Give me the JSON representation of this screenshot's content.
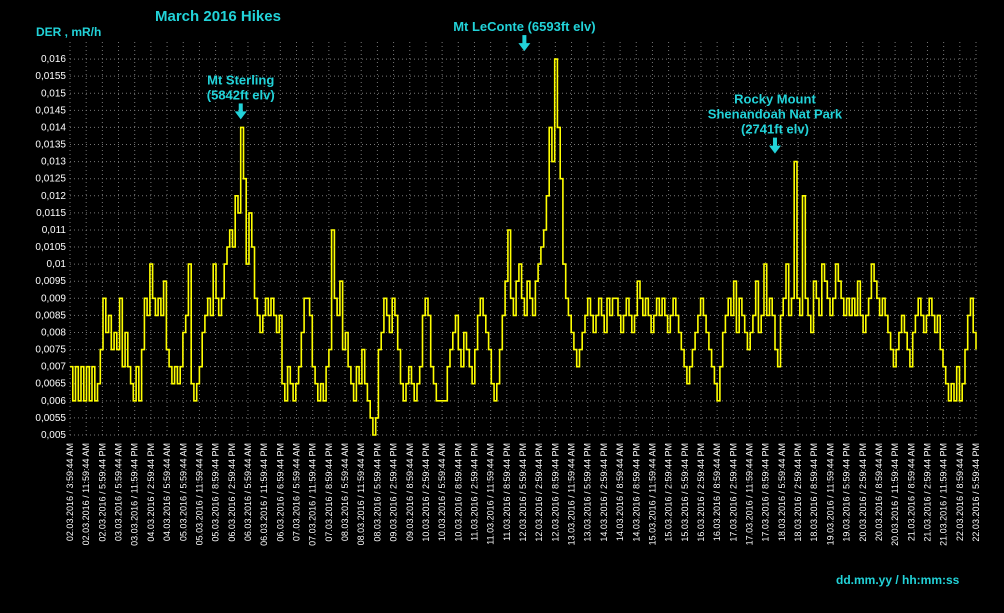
{
  "chart_data": {
    "type": "line",
    "title": "March 2016 Hikes",
    "ylabel": "DER , mR/h",
    "xlabel": "dd.mm.yy / hh:mm:ss",
    "ylim": [
      0.005,
      0.0165
    ],
    "grid": true,
    "y_ticks": [
      "0,005",
      "0,0055",
      "0,006",
      "0,0065",
      "0,007",
      "0,0075",
      "0,008",
      "0,0085",
      "0,009",
      "0,0095",
      "0,01",
      "0,0105",
      "0,011",
      "0,0115",
      "0,012",
      "0,0125",
      "0,013",
      "0,0135",
      "0,014",
      "0,0145",
      "0,015",
      "0,0155",
      "0,016"
    ],
    "x_ticks": [
      "02.03.2016 / 3:59:44 AM",
      "02.03.2016 / 11:59:44 AM",
      "02.03.2016 / 5:59:44 PM",
      "03.03.2016 / 5:59:44 AM",
      "03.03.2016 / 11:59:44 PM",
      "04.03.2016 / 2:59:44 PM",
      "04.03.2016 / 5:59:44 AM",
      "05.03.2016 / 5:59:44 AM",
      "05.03.2016 / 11:59:44 AM",
      "05.03.2016 / 8:59:44 PM",
      "06.03.2016 / 2:59:44 PM",
      "06.03.2016 / 5:59:44 AM",
      "06.03.2016 / 11:59:44 PM",
      "06.03.2016 / 6:59:44 PM",
      "07.03.2016 / 5:59:44 AM",
      "07.03.2016 / 11:59:44 PM",
      "07.03.2016 / 8:59:44 PM",
      "08.03.2016 / 5:59:44 AM",
      "08.03.2016 / 11:59:44 AM",
      "08.03.2016 / 5:59:44 PM",
      "09.03.2016 / 2:59:44 PM",
      "09.03.2016 / 8:59:44 AM",
      "10.03.2016 / 2:59:44 PM",
      "10.03.2016 / 5:59:44 AM",
      "10.03.2016 / 8:59:44 PM",
      "11.03.2016 / 2:59:44 PM",
      "11.03.2016 / 11:59:44 AM",
      "11.03.2016 / 8:59:44 PM",
      "12.03.2016 / 5:59:44 PM",
      "12.03.2016 / 2:59:44 PM",
      "12.03.2016 / 8:59:44 PM",
      "13.03.2016 / 11:59:44 AM",
      "13.03.2016 / 5:59:44 PM",
      "14.03.2016 / 2:59:44 PM",
      "14.03.2016 / 8:59:44 AM",
      "14.03.2016 / 8:59:44 PM",
      "15.03.2016 / 11:59:44 AM",
      "15.03.2016 / 2:59:44 PM",
      "15.03.2016 / 5:59:44 PM",
      "16.03.2016 / 2:59:44 PM",
      "16.03.2016 / 8:59:44 AM",
      "17.03.2016 / 2:59:44 PM",
      "17.03.2016 / 11:59:44 AM",
      "17.03.2016 / 8:59:44 PM",
      "18.03.2016 / 5:59:44 AM",
      "18.03.2016 / 2:59:44 PM",
      "18.03.2016 / 8:59:44 PM",
      "19.03.2016 / 11:59:44 AM",
      "19.03.2016 / 5:59:44 PM",
      "20.03.2016 / 2:59:44 PM",
      "20.03.2016 / 8:59:44 AM",
      "20.03.2016 / 11:59:44 PM",
      "21.03.2016 / 8:59:44 AM",
      "21.03.2016 / 2:59:44 PM",
      "21.03.2016 / 11:59:44 PM",
      "22.03.2016 / 8:59:44 AM",
      "22.03.2016 / 5:59:44 PM"
    ],
    "series": [
      {
        "color": "#ffff00",
        "values": [
          0.007,
          0.006,
          0.007,
          0.006,
          0.007,
          0.006,
          0.007,
          0.006,
          0.007,
          0.006,
          0.0065,
          0.0075,
          0.009,
          0.008,
          0.0085,
          0.0075,
          0.008,
          0.0075,
          0.009,
          0.007,
          0.008,
          0.007,
          0.0065,
          0.006,
          0.007,
          0.006,
          0.0075,
          0.009,
          0.0085,
          0.01,
          0.009,
          0.0085,
          0.009,
          0.0085,
          0.0095,
          0.0075,
          0.007,
          0.0065,
          0.007,
          0.0065,
          0.007,
          0.008,
          0.0085,
          0.01,
          0.0065,
          0.006,
          0.0065,
          0.007,
          0.008,
          0.0085,
          0.009,
          0.0085,
          0.01,
          0.009,
          0.0085,
          0.009,
          0.01,
          0.0105,
          0.011,
          0.0105,
          0.012,
          0.0115,
          0.014,
          0.0125,
          0.01,
          0.0115,
          0.0105,
          0.009,
          0.0085,
          0.008,
          0.0085,
          0.009,
          0.0085,
          0.009,
          0.0085,
          0.008,
          0.0085,
          0.0065,
          0.006,
          0.007,
          0.0065,
          0.006,
          0.0065,
          0.007,
          0.008,
          0.009,
          0.009,
          0.0085,
          0.007,
          0.0065,
          0.006,
          0.0065,
          0.006,
          0.007,
          0.0075,
          0.011,
          0.009,
          0.0085,
          0.0095,
          0.0075,
          0.008,
          0.007,
          0.0065,
          0.006,
          0.007,
          0.0065,
          0.0075,
          0.0065,
          0.006,
          0.0055,
          0.005,
          0.0055,
          0.0075,
          0.008,
          0.009,
          0.0085,
          0.008,
          0.009,
          0.0085,
          0.0075,
          0.0065,
          0.006,
          0.0065,
          0.007,
          0.0065,
          0.006,
          0.0065,
          0.007,
          0.0085,
          0.009,
          0.0085,
          0.007,
          0.0065,
          0.006,
          0.006,
          0.006,
          0.006,
          0.007,
          0.0075,
          0.008,
          0.0085,
          0.0075,
          0.007,
          0.008,
          0.0075,
          0.007,
          0.0065,
          0.0075,
          0.0085,
          0.009,
          0.0085,
          0.008,
          0.0075,
          0.0065,
          0.006,
          0.0065,
          0.0075,
          0.0085,
          0.0095,
          0.011,
          0.009,
          0.0085,
          0.0095,
          0.01,
          0.009,
          0.0085,
          0.0095,
          0.009,
          0.0085,
          0.0095,
          0.01,
          0.0105,
          0.011,
          0.012,
          0.014,
          0.013,
          0.016,
          0.014,
          0.0125,
          0.01,
          0.009,
          0.0085,
          0.008,
          0.0075,
          0.007,
          0.0075,
          0.008,
          0.0085,
          0.009,
          0.0085,
          0.008,
          0.0085,
          0.009,
          0.0085,
          0.008,
          0.009,
          0.0085,
          0.009,
          0.009,
          0.0085,
          0.008,
          0.0085,
          0.009,
          0.0085,
          0.008,
          0.0085,
          0.0095,
          0.009,
          0.0085,
          0.009,
          0.0085,
          0.008,
          0.0085,
          0.009,
          0.0085,
          0.009,
          0.0085,
          0.008,
          0.0085,
          0.009,
          0.0085,
          0.008,
          0.0075,
          0.007,
          0.0065,
          0.007,
          0.0075,
          0.008,
          0.0085,
          0.009,
          0.0085,
          0.008,
          0.0075,
          0.007,
          0.0065,
          0.006,
          0.007,
          0.008,
          0.0085,
          0.009,
          0.0085,
          0.0095,
          0.008,
          0.009,
          0.0085,
          0.008,
          0.0075,
          0.008,
          0.0085,
          0.0095,
          0.008,
          0.0085,
          0.01,
          0.0085,
          0.009,
          0.0085,
          0.0075,
          0.007,
          0.0085,
          0.009,
          0.01,
          0.0085,
          0.009,
          0.013,
          0.009,
          0.0085,
          0.012,
          0.009,
          0.0085,
          0.008,
          0.0095,
          0.009,
          0.0085,
          0.01,
          0.0095,
          0.009,
          0.0085,
          0.009,
          0.01,
          0.0095,
          0.009,
          0.0085,
          0.009,
          0.0085,
          0.009,
          0.0085,
          0.0095,
          0.0085,
          0.008,
          0.0085,
          0.009,
          0.01,
          0.0095,
          0.009,
          0.0085,
          0.009,
          0.0085,
          0.008,
          0.0075,
          0.007,
          0.0075,
          0.008,
          0.0085,
          0.008,
          0.0075,
          0.007,
          0.008,
          0.0085,
          0.009,
          0.0085,
          0.008,
          0.0085,
          0.009,
          0.0085,
          0.008,
          0.0085,
          0.0075,
          0.007,
          0.0065,
          0.006,
          0.0065,
          0.006,
          0.007,
          0.006,
          0.0065,
          0.0075,
          0.0085,
          0.009,
          0.008,
          0.0075
        ]
      }
    ],
    "annotations": [
      {
        "lines": [
          "Mt Sterling",
          "(5842ft elv)"
        ],
        "index": 62,
        "value": 0.014
      },
      {
        "lines": [
          "Mt LeConte (6593ft elv)"
        ],
        "index": 165,
        "value": 0.016
      },
      {
        "lines": [
          "Rocky Mount",
          "Shenandoah Nat Park",
          "(2741ft elv)"
        ],
        "index": 256,
        "value": 0.013
      }
    ]
  }
}
